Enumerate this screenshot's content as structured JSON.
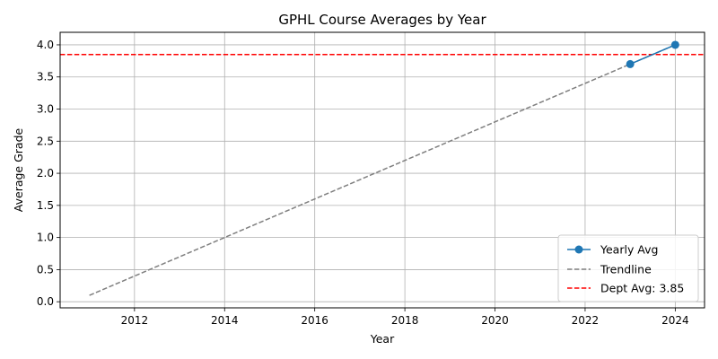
{
  "chart_data": {
    "type": "line",
    "title": "GPHL Course Averages by Year",
    "xlabel": "Year",
    "ylabel": "Average Grade",
    "xlim": [
      2010.35,
      2024.65
    ],
    "ylim": [
      -0.095,
      4.195
    ],
    "x_ticks": [
      2012,
      2014,
      2016,
      2018,
      2020,
      2022,
      2024
    ],
    "y_ticks": [
      0.0,
      0.5,
      1.0,
      1.5,
      2.0,
      2.5,
      3.0,
      3.5,
      4.0
    ],
    "grid": true,
    "legend_position": "lower-right",
    "series": [
      {
        "name": "Yearly Avg",
        "kind": "line-marker",
        "color": "#1f77b4",
        "x": [
          2023,
          2024
        ],
        "y": [
          3.7,
          4.0
        ]
      },
      {
        "name": "Trendline",
        "kind": "dashed-line",
        "color": "#7f7f7f",
        "x": [
          2011,
          2024
        ],
        "y": [
          0.1,
          4.0
        ]
      }
    ],
    "reference_lines": [
      {
        "name": "Dept Avg: 3.85",
        "orientation": "horizontal",
        "value": 3.85,
        "color": "#ff0000",
        "style": "dashed"
      }
    ]
  }
}
